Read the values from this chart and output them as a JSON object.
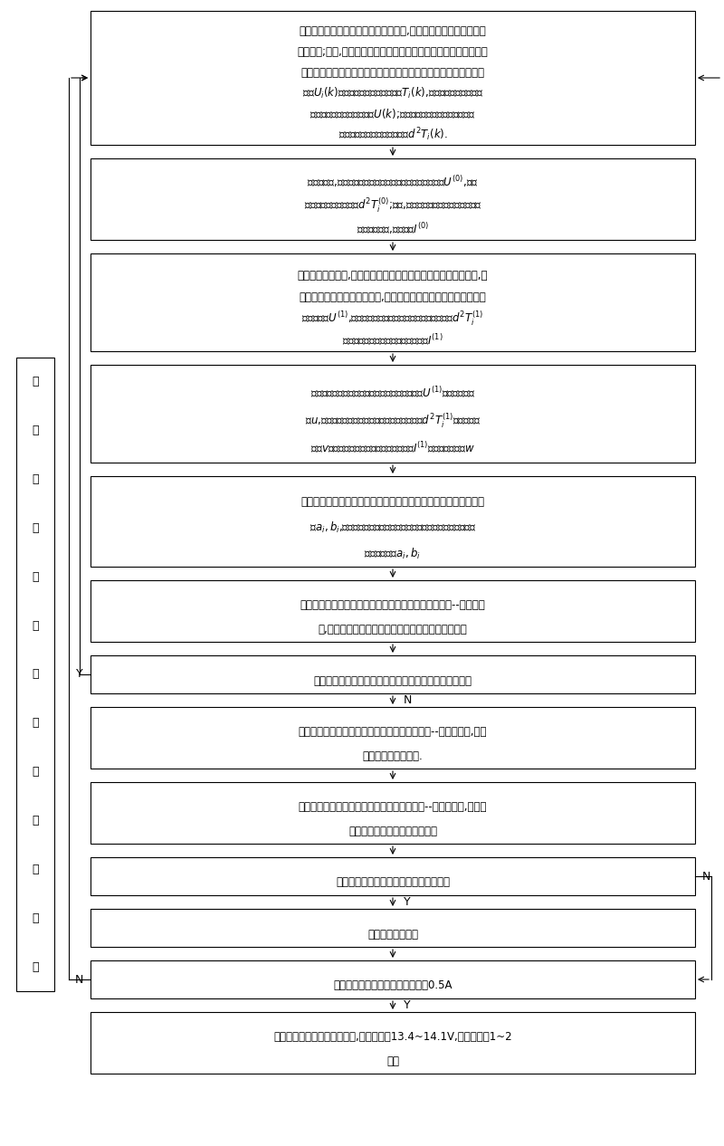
{
  "background_color": "#ffffff",
  "left_label": [
    "铅",
    "酸",
    "蓄",
    "电",
    "池",
    "维",
    "护",
    "纳",
    "自",
    "适",
    "应",
    "控",
    "制"
  ],
  "boxes": [
    {
      "id": 0,
      "lines": [
        "充电器按照事先设定的慢脉冲充电方式,以预先设定的初始充电电流",
        "进行充电;同时,充电器的微处理模块根据铅酸蓄电池各单格检测电路",
        "模块通过总线通信传输过来的某采样时刻的铅酸蓄电池的各单格端",
        "电压$U_i(k)$和铅酸蓄电池的各单格温度$T_i(k)$,按制高原则确定此采样",
        "时刻的铅酸蓄电池的端电压$U(k)$;通过逐补二次微分获得此时刻铅",
        "酸蓄电池各单格的温升变化率$d^2T_i(k)$."
      ],
      "nlines": 6
    },
    {
      "id": 1,
      "lines": [
        "定周期采样,获得定周期内的铅酸蓄电池的端电压采样序列$U^{(0)}$,各单",
        "格温升变化率采样序列$d^2T_i^{(0)}$;同时,在充电回路中定周期采样铅酸蓄",
        "电池充电电流,得到序列$I^{(0)}$"
      ],
      "nlines": 3
    },
    {
      "id": 2,
      "lines": [
        "铅酸蓄电池端电压,各单格温升变化率和充电电流的周期采样序列,分",
        "别进行灰色一次累加生成处理,得到铅酸蓄电池端电压的灰色一次累",
        "加生成序列$U^{(1)}$,各单格温升变化率的灰色一次累加生成序列$d^2T_i^{(1)}$",
        "和充电电流的灰色一次累加生成序列$I^{(1)}$"
      ],
      "nlines": 4
    },
    {
      "id": 3,
      "lines": [
        "获得铅酸蓄电池端电压的灰色一次累加生成序列$U^{(1)}$的均值生成序",
        "列$u$,各单格温升变化率的灰色一次累加生成序列$d^2T_i^{(1)}$的均值生成",
        "序列$v$和充电电流的灰色一次累加生成序列$I^{(1)}$的均值生成序列$w$"
      ],
      "nlines": 3
    },
    {
      "id": 4,
      "lines": [
        "计算铅酸蓄电池各单格温升变化率进行灰色预测跟踪所需的灰作用",
        "量$a_i,b_i$,同时计算铅酸蓄电池充电电流进行灰色系统自主量预测所",
        "需的灰作用量$a_i,b_i$"
      ],
      "nlines": 3
    },
    {
      "id": 5,
      "lines": [
        "利用铅酸蓄电池单格温升变化率的等维递补灰色单变量--阶预测模",
        "型,进行铅酸蓄电池各单格温升变化率的灰色预测跟踪"
      ],
      "nlines": 2
    },
    {
      "id": 6,
      "lines": [
        "各单格温升变化率的跟踪预测结果之差是否超出限定误差"
      ],
      "nlines": 1
    },
    {
      "id": 7,
      "lines": [
        "利用铅酸蓄电池充电电流的等维递补灰色单变量--阶预测模型,进行",
        "充电电流的自主预测."
      ],
      "nlines": 2
    },
    {
      "id": 8,
      "lines": [
        "利用铅酸蓄电池端电压的等维递补灰色二变量--阶预测模型,进行铅",
        "酸蓄电池端电压的灰色跟踪预测"
      ],
      "nlines": 2
    },
    {
      "id": 9,
      "lines": [
        "预测端电压值是否超过设定充电电压阈值"
      ],
      "nlines": 1
    },
    {
      "id": 10,
      "lines": [
        "启动短时放电操作"
      ],
      "nlines": 1
    },
    {
      "id": 11,
      "lines": [
        "充电电流调整后进行判断是否小于0.5A"
      ],
      "nlines": 1
    },
    {
      "id": 12,
      "lines": [
        "铅酸蓄电池进入浮充充电阶段,充电电压为13.4~14.1V,充电时间为1~2",
        "小时"
      ],
      "nlines": 2
    }
  ]
}
